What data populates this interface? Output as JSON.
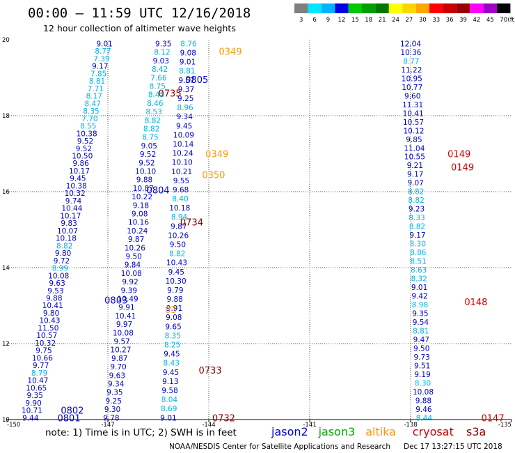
{
  "chart_data": {
    "type": "scatter",
    "title": "00:00 – 11:59 UTC 12/16/2018",
    "subtitle": "12 hour collection of altimeter wave heights",
    "xlim": [
      -150,
      -135
    ],
    "ylim": [
      10,
      20
    ],
    "x_ticks": [
      "-150",
      "-147",
      "-144",
      "-141",
      "-138",
      "-135"
    ],
    "y_ticks": [
      "20",
      "18",
      "16",
      "14",
      "12",
      "10"
    ],
    "grid": true,
    "color_scale": {
      "levels": [
        "3",
        "6",
        "9",
        "12",
        "15",
        "18",
        "21",
        "24",
        "27",
        "30",
        "33",
        "36",
        "39",
        "42",
        "45",
        "70"
      ],
      "unit": "(ft)",
      "colors": [
        "#7f7f7f",
        "#00e5ff",
        "#00b4ff",
        "#0000e6",
        "#00c800",
        "#00a000",
        "#007800",
        "#ffff00",
        "#ffd700",
        "#ffa500",
        "#ff0000",
        "#c80000",
        "#960000",
        "#ff00ff",
        "#a000c8",
        "#000000"
      ]
    },
    "legend_note": "note:  1) Time is in UTC;  2) SWH is in feet",
    "satellites": [
      {
        "name": "jason2",
        "color": "#0000cc"
      },
      {
        "name": "jason3",
        "color": "#00aa00"
      },
      {
        "name": "altika",
        "color": "#ff9900"
      },
      {
        "name": "cryosat",
        "color": "#cc0000"
      },
      {
        "name": "s3a",
        "color": "#880000"
      }
    ],
    "credit": "NOAA/NESDIS Center for Satellite Applications and Research",
    "timestamp": "Dec 17 13:27:15 UTC 2018",
    "pass_labels": [
      {
        "text": "0349",
        "x": -143.7,
        "y": 19.7,
        "sat": "altika"
      },
      {
        "text": "0805",
        "x": -144.7,
        "y": 18.95,
        "sat": "jason2"
      },
      {
        "text": "0735",
        "x": -145.5,
        "y": 18.6,
        "sat": "s3a"
      },
      {
        "text": "0349",
        "x": -144.1,
        "y": 17.0,
        "sat": "altika"
      },
      {
        "text": "0350",
        "x": -144.2,
        "y": 16.45,
        "sat": "altika"
      },
      {
        "text": "0804",
        "x": -145.85,
        "y": 16.05,
        "sat": "jason2"
      },
      {
        "text": "0734",
        "x": -144.85,
        "y": 15.2,
        "sat": "s3a"
      },
      {
        "text": "0803",
        "x": -147.1,
        "y": 13.15,
        "sat": "jason2"
      },
      {
        "text": "03",
        "x": -145.3,
        "y": 12.9,
        "sat": "altika"
      },
      {
        "text": "0733",
        "x": -144.3,
        "y": 11.3,
        "sat": "s3a"
      },
      {
        "text": "0802",
        "x": -148.4,
        "y": 10.25,
        "sat": "jason2"
      },
      {
        "text": "0801",
        "x": -148.5,
        "y": 10.05,
        "sat": "jason2"
      },
      {
        "text": "0732",
        "x": -143.9,
        "y": 10.05,
        "sat": "s3a"
      },
      {
        "text": "0149",
        "x": -136.9,
        "y": 17.0,
        "sat": "cryosat"
      },
      {
        "text": "0149",
        "x": -136.8,
        "y": 16.65,
        "sat": "cryosat"
      },
      {
        "text": "0148",
        "x": -136.4,
        "y": 13.1,
        "sat": "cryosat"
      },
      {
        "text": "0147",
        "x": -135.9,
        "y": 10.05,
        "sat": "cryosat"
      }
    ],
    "tracks": [
      {
        "sat": "jason2",
        "x0": -147.1,
        "x1": -149.3,
        "y0": 19.9,
        "y1": 10.05,
        "values": [
          "9.01",
          "8.77",
          "7.39",
          "9.17",
          "7.85",
          "8.81",
          "7.71",
          "8.17",
          "8.47",
          "8.35",
          "7.70",
          "8.55",
          "10.38",
          "9.52",
          "9.52",
          "10.50",
          "9.86",
          "10.17",
          "9.45",
          "10.38",
          "10.32",
          "9.74",
          "10.44",
          "10.17",
          "9.83",
          "10.07",
          "10.18",
          "8.82",
          "9.80",
          "9.72",
          "8.99",
          "10.08",
          "9.63",
          "9.53",
          "9.88",
          "10.41",
          "9.80",
          "10.43",
          "11.50",
          "10.57",
          "10.32",
          "9.75",
          "10.66",
          "9.77",
          "8.79",
          "10.47",
          "10.65",
          "9.35",
          "9.90",
          "10.71",
          "9.44"
        ]
      },
      {
        "sat": "jason2",
        "x0": -145.35,
        "x1": -146.9,
        "y0": 19.9,
        "y1": 10.05,
        "values": [
          "9.35",
          "8.12",
          "9.03",
          "8.42",
          "7.66",
          "8.75",
          "8.45",
          "8.46",
          "8.53",
          "8.82",
          "8.82",
          "8.75",
          "9.05",
          "9.52",
          "9.52",
          "10.10",
          "9.88",
          "10.87",
          "10.22",
          "9.18",
          "9.08",
          "10.16",
          "10.24",
          "9.87",
          "10.26",
          "9.50",
          "9.84",
          "10.08",
          "9.92",
          "9.39",
          "10.49",
          "9.91",
          "10.41",
          "9.97",
          "10.08",
          "9.57",
          "10.27",
          "9.87",
          "9.70",
          "9.63",
          "9.34",
          "9.35",
          "9.25",
          "9.30",
          "9.78"
        ]
      },
      {
        "sat": "jason2",
        "x0": -144.6,
        "x1": -145.2,
        "y0": 19.9,
        "y1": 10.05,
        "values": [
          "8.76",
          "9.08",
          "9.01",
          "8.81",
          "9.57",
          "9.37",
          "9.25",
          "8.96",
          "9.34",
          "9.45",
          "10.09",
          "10.14",
          "10.24",
          "10.10",
          "10.21",
          "9.55",
          "9.68",
          "8.40",
          "10.18",
          "8.94",
          "9.87",
          "10.26",
          "9.50",
          "8.82",
          "10.43",
          "9.45",
          "10.30",
          "9.79",
          "9.88",
          "9.91",
          "9.08",
          "9.65",
          "8.35",
          "8.25",
          "9.45",
          "8.43",
          "9.45",
          "9.13",
          "9.58",
          "8.04",
          "8.69",
          "9.01"
        ]
      },
      {
        "sat": "jason2",
        "x0": -138.0,
        "x1": -137.6,
        "y0": 19.9,
        "y1": 10.05,
        "values": [
          "12.04",
          "10.36",
          "8.77",
          "11.22",
          "10.95",
          "10.77",
          "9.60",
          "11.31",
          "10.41",
          "10.57",
          "10.12",
          "9.85",
          "11.04",
          "10.55",
          "9.21",
          "9.17",
          "9.07",
          "8.82",
          "8.82",
          "9.23",
          "8.33",
          "8.82",
          "9.17",
          "8.30",
          "8.86",
          "8.51",
          "8.63",
          "8.32",
          "9.01",
          "9.42",
          "8.98",
          "9.35",
          "9.54",
          "8.81",
          "9.47",
          "9.50",
          "9.73",
          "9.51",
          "9.19",
          "8.30",
          "10.08",
          "9.88",
          "9.46",
          "8.44"
        ]
      }
    ]
  }
}
